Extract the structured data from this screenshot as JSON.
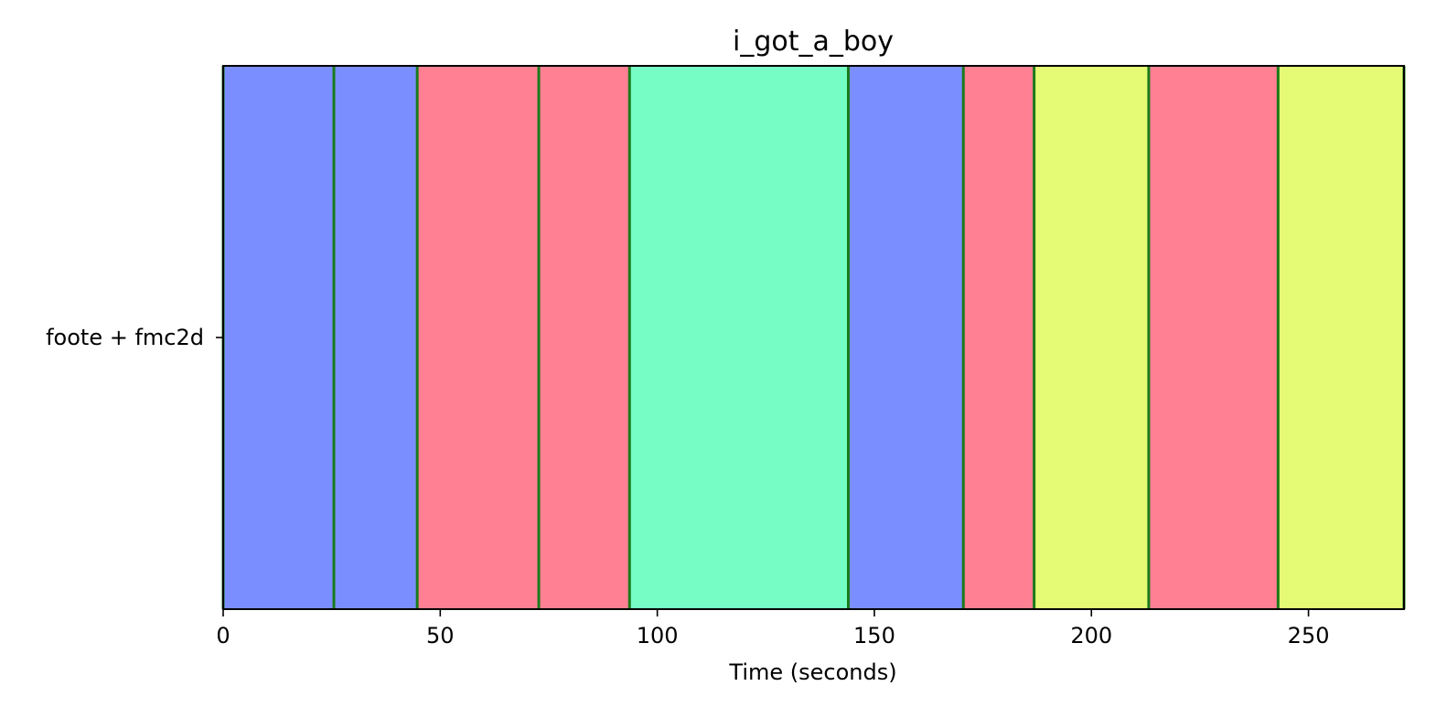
{
  "chart_data": {
    "type": "segments",
    "title": "i_got_a_boy",
    "xlabel": "Time (seconds)",
    "ylabel": "",
    "xlim": [
      0,
      272
    ],
    "x_ticks": [
      0,
      50,
      100,
      150,
      200,
      250
    ],
    "x_tick_labels": [
      "0",
      "50",
      "100",
      "150",
      "200",
      "250"
    ],
    "y_tick_labels": [
      "foote + fmc2d"
    ],
    "grid": false,
    "legend": "none",
    "boundary_color": "#1a7a1a",
    "colors": {
      "blue": "#7b8eff",
      "red": "#ff8093",
      "green": "#76fcc5",
      "yellow": "#e5fb76"
    },
    "boundaries": [
      0,
      25.5,
      44.7,
      72.7,
      93.6,
      144.0,
      170.5,
      186.8,
      213.2,
      243.0,
      272
    ],
    "segments": [
      {
        "start": 0,
        "end": 25.5,
        "color": "blue"
      },
      {
        "start": 25.5,
        "end": 44.7,
        "color": "blue"
      },
      {
        "start": 44.7,
        "end": 72.7,
        "color": "red"
      },
      {
        "start": 72.7,
        "end": 93.6,
        "color": "red"
      },
      {
        "start": 93.6,
        "end": 144.0,
        "color": "green"
      },
      {
        "start": 144.0,
        "end": 170.5,
        "color": "blue"
      },
      {
        "start": 170.5,
        "end": 186.8,
        "color": "red"
      },
      {
        "start": 186.8,
        "end": 213.2,
        "color": "yellow"
      },
      {
        "start": 213.2,
        "end": 243.0,
        "color": "red"
      },
      {
        "start": 243.0,
        "end": 272,
        "color": "yellow"
      }
    ]
  }
}
